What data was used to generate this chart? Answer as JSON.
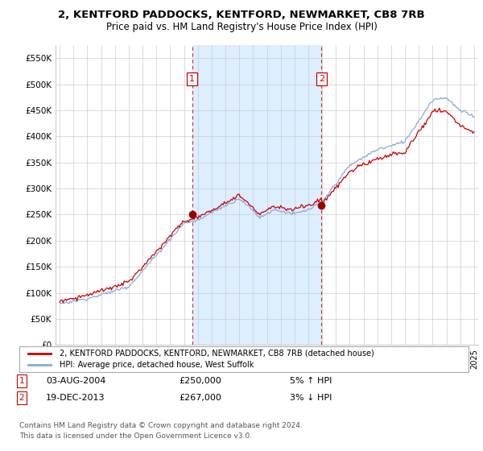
{
  "title1": "2, KENTFORD PADDOCKS, KENTFORD, NEWMARKET, CB8 7RB",
  "title2": "Price paid vs. HM Land Registry's House Price Index (HPI)",
  "ylim": [
    0,
    575000
  ],
  "yticks": [
    0,
    50000,
    100000,
    150000,
    200000,
    250000,
    300000,
    350000,
    400000,
    450000,
    500000,
    550000
  ],
  "ytick_labels": [
    "£0",
    "£50K",
    "£100K",
    "£150K",
    "£200K",
    "£250K",
    "£300K",
    "£350K",
    "£400K",
    "£450K",
    "£500K",
    "£550K"
  ],
  "sale1_date": "03-AUG-2004",
  "sale1_price": 250000,
  "sale1_price_str": "£250,000",
  "sale1_hpi": "5% ↑ HPI",
  "sale1_x": 2004.58,
  "sale2_date": "19-DEC-2013",
  "sale2_price": 267000,
  "sale2_price_str": "£267,000",
  "sale2_hpi": "3% ↓ HPI",
  "sale2_x": 2013.96,
  "legend_label1": "2, KENTFORD PADDOCKS, KENTFORD, NEWMARKET, CB8 7RB (detached house)",
  "legend_label2": "HPI: Average price, detached house, West Suffolk",
  "footer1": "Contains HM Land Registry data © Crown copyright and database right 2024.",
  "footer2": "This data is licensed under the Open Government Licence v3.0.",
  "line_color_red": "#cc0000",
  "line_color_blue": "#88aadd",
  "shade_color": "#ddeeff",
  "background_color": "#ffffff",
  "grid_color": "#cccccc",
  "dashed_color": "#cc0000",
  "marker_color": "#990000"
}
